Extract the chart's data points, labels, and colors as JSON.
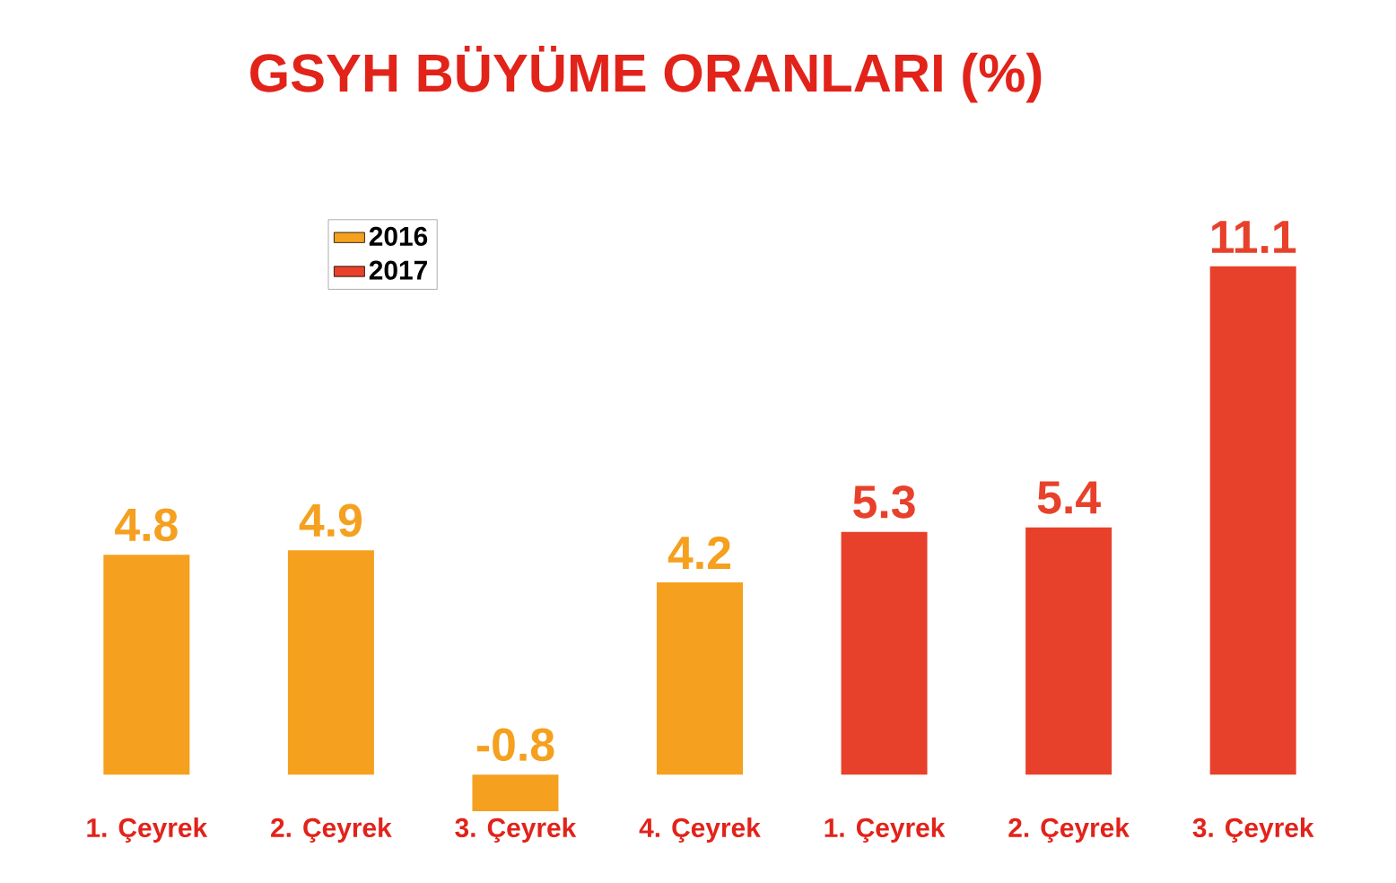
{
  "chart_data": {
    "type": "bar",
    "title": "GSYH BÜYÜME ORANLARI (%)",
    "categories": [
      "1. Çeyrek",
      "2. Çeyrek",
      "3. Çeyrek",
      "4. Çeyrek",
      "1. Çeyrek",
      "2. Çeyrek",
      "3. Çeyrek"
    ],
    "series": [
      {
        "name": "2016",
        "color": "#f5a01e",
        "values": [
          4.8,
          4.9,
          -0.8,
          4.2,
          null,
          null,
          null
        ]
      },
      {
        "name": "2017",
        "color": "#e8412b",
        "values": [
          null,
          null,
          null,
          null,
          5.3,
          5.4,
          11.1
        ]
      }
    ],
    "data_labels": true,
    "legend": "top left"
  }
}
